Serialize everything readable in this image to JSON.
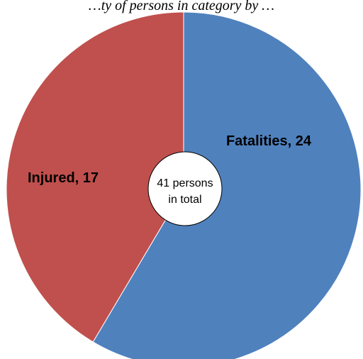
{
  "chart_data": {
    "type": "pie",
    "title": "…ty of persons in category by …",
    "slices": [
      {
        "label": "Fatalities",
        "value": 24,
        "color": "#4F81BD"
      },
      {
        "label": "Injured",
        "value": 17,
        "color": "#C0504D"
      }
    ],
    "center_label": {
      "line1": "41 persons",
      "line2": "in total"
    }
  }
}
